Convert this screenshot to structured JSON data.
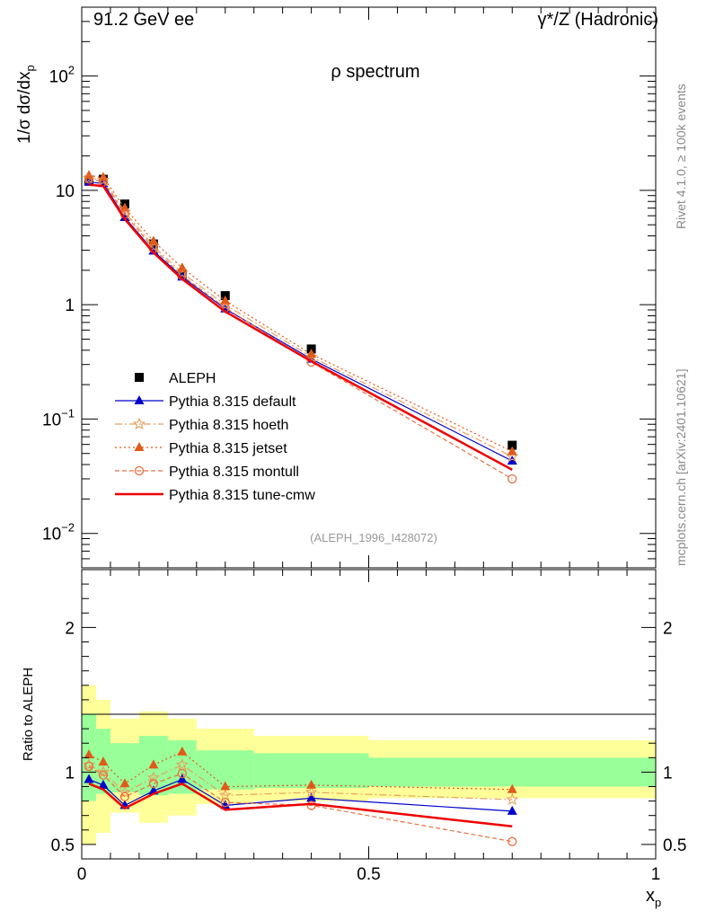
{
  "header": {
    "left": "91.2 GeV ee",
    "right": "γ*/Z (Hadronic)"
  },
  "side_labels": {
    "rivet": "Rivet 4.1.0, ≥ 100k events",
    "mcplots": "mcplots.cern.ch [arXiv:2401.10621]"
  },
  "colors": {
    "ALEPH": "#000000",
    "default": "#0000cc",
    "hoeth": "#e8a060",
    "jetset": "#e05a1a",
    "montull": "#e87040",
    "tune_cmw": "#ee0000",
    "band_inner": "#99ff99",
    "band_outer": "#ffff99"
  },
  "chart_data": [
    {
      "id": "main",
      "type": "line",
      "title": "ρ spectrum",
      "ylabel": "1/σ  dσ/dx_p",
      "yscale": "log",
      "ylim": [
        0.005,
        400
      ],
      "xlim": [
        0,
        1
      ],
      "yticks": [
        "10^-2",
        "10^-1",
        "1",
        "10",
        "10^2"
      ],
      "yticks_values": [
        0.01,
        0.1,
        1,
        10,
        100
      ],
      "watermark": "(ALEPH_1996_I428072)",
      "x": [
        0.0125,
        0.0375,
        0.075,
        0.125,
        0.175,
        0.25,
        0.4,
        0.75
      ],
      "series": [
        {
          "key": "ALEPH",
          "name": "ALEPH",
          "style": "data",
          "values": [
            12.3,
            12.5,
            7.6,
            3.4,
            1.85,
            1.2,
            0.41,
            0.059
          ]
        },
        {
          "key": "default",
          "name": "Pythia 8.315 default",
          "style": "solid",
          "marker": "triangle",
          "values": [
            11.8,
            11.5,
            5.8,
            2.95,
            1.75,
            0.92,
            0.335,
            0.043
          ]
        },
        {
          "key": "hoeth",
          "name": "Pythia 8.315 hoeth",
          "style": "dashdot",
          "marker": "star",
          "values": [
            12.8,
            12.3,
            6.5,
            3.25,
            1.9,
            1.0,
            0.35,
            0.047
          ]
        },
        {
          "key": "jetset",
          "name": "Pythia 8.315 jetset",
          "style": "dotted",
          "marker": "triangle",
          "values": [
            13.5,
            13.0,
            7.0,
            3.6,
            2.1,
            1.08,
            0.37,
            0.052
          ]
        },
        {
          "key": "montull",
          "name": "Pythia 8.315 montull",
          "style": "dashed",
          "marker": "circle",
          "values": [
            12.6,
            11.9,
            6.2,
            3.1,
            1.8,
            0.94,
            0.315,
            0.03
          ]
        },
        {
          "key": "tune_cmw",
          "name": "Pythia 8.315 tune-cmw",
          "style": "solid-thick",
          "marker": "none",
          "values": [
            11.2,
            10.9,
            5.6,
            2.85,
            1.68,
            0.87,
            0.32,
            0.036
          ]
        }
      ]
    },
    {
      "id": "ratio",
      "type": "line",
      "ylabel": "Ratio to ALEPH",
      "xlabel": "x_p",
      "ylim": [
        0.4,
        2.4
      ],
      "xlim": [
        0,
        1
      ],
      "yticks": [
        "0.5",
        "1",
        "2"
      ],
      "yticks_values": [
        0.5,
        1,
        2
      ],
      "xticks": [
        "0",
        "0.5",
        "1"
      ],
      "xticks_values": [
        0,
        0.5,
        1
      ],
      "bands": [
        {
          "x0": 0,
          "x1": 0.025,
          "inner": [
            0.8,
            1.4
          ],
          "outer": [
            0.5,
            1.6
          ]
        },
        {
          "x0": 0.025,
          "x1": 0.05,
          "inner": [
            0.85,
            1.3
          ],
          "outer": [
            0.58,
            1.5
          ]
        },
        {
          "x0": 0.05,
          "x1": 0.1,
          "inner": [
            0.86,
            1.2
          ],
          "outer": [
            0.72,
            1.37
          ]
        },
        {
          "x0": 0.1,
          "x1": 0.15,
          "inner": [
            0.84,
            1.25
          ],
          "outer": [
            0.65,
            1.42
          ]
        },
        {
          "x0": 0.15,
          "x1": 0.2,
          "inner": [
            0.85,
            1.22
          ],
          "outer": [
            0.7,
            1.37
          ]
        },
        {
          "x0": 0.2,
          "x1": 0.3,
          "inner": [
            0.88,
            1.15
          ],
          "outer": [
            0.78,
            1.3
          ]
        },
        {
          "x0": 0.3,
          "x1": 0.5,
          "inner": [
            0.89,
            1.13
          ],
          "outer": [
            0.8,
            1.25
          ]
        },
        {
          "x0": 0.5,
          "x1": 1.0,
          "inner": [
            0.9,
            1.1
          ],
          "outer": [
            0.82,
            1.22
          ]
        }
      ],
      "x": [
        0.0125,
        0.0375,
        0.075,
        0.125,
        0.175,
        0.25,
        0.4,
        0.75
      ],
      "series": [
        {
          "key": "default",
          "values": [
            0.95,
            0.91,
            0.77,
            0.87,
            0.95,
            0.77,
            0.82,
            0.73
          ]
        },
        {
          "key": "hoeth",
          "values": [
            1.05,
            1.0,
            0.86,
            0.96,
            1.05,
            0.84,
            0.86,
            0.81
          ]
        },
        {
          "key": "jetset",
          "values": [
            1.12,
            1.07,
            0.92,
            1.05,
            1.14,
            0.9,
            0.91,
            0.88
          ]
        },
        {
          "key": "montull",
          "values": [
            1.04,
            0.98,
            0.83,
            0.92,
            0.99,
            0.79,
            0.77,
            0.52
          ]
        },
        {
          "key": "tune_cmw",
          "values": [
            0.92,
            0.88,
            0.75,
            0.85,
            0.92,
            0.74,
            0.78,
            0.625
          ]
        }
      ]
    }
  ]
}
